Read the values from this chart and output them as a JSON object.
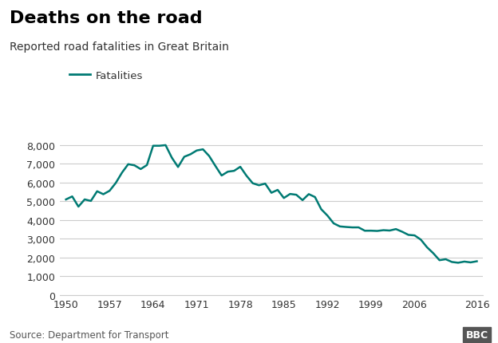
{
  "title": "Deaths on the road",
  "subtitle": "Reported road fatalities in Great Britain",
  "legend_label": "Fatalities",
  "source": "Source: Department for Transport",
  "line_color": "#007a73",
  "bg_color": "#ffffff",
  "grid_color": "#cccccc",
  "years": [
    1950,
    1951,
    1952,
    1953,
    1954,
    1955,
    1956,
    1957,
    1958,
    1959,
    1960,
    1961,
    1962,
    1963,
    1964,
    1965,
    1966,
    1967,
    1968,
    1969,
    1970,
    1971,
    1972,
    1973,
    1974,
    1975,
    1976,
    1977,
    1978,
    1979,
    1980,
    1981,
    1982,
    1983,
    1984,
    1985,
    1986,
    1987,
    1988,
    1989,
    1990,
    1991,
    1992,
    1993,
    1994,
    1995,
    1996,
    1997,
    1998,
    1999,
    2000,
    2001,
    2002,
    2003,
    2004,
    2005,
    2006,
    2007,
    2008,
    2009,
    2010,
    2011,
    2012,
    2013,
    2014,
    2015,
    2016
  ],
  "fatalities": [
    5090,
    5250,
    4706,
    5090,
    5010,
    5526,
    5367,
    5550,
    5970,
    6520,
    6970,
    6908,
    6709,
    6922,
    7952,
    7952,
    7985,
    7319,
    6819,
    7365,
    7499,
    7699,
    7763,
    7406,
    6876,
    6366,
    6570,
    6614,
    6831,
    6352,
    5953,
    5846,
    5934,
    5445,
    5599,
    5165,
    5382,
    5339,
    5052,
    5373,
    5217,
    4568,
    4229,
    3814,
    3650,
    3621,
    3598,
    3599,
    3421,
    3423,
    3409,
    3450,
    3431,
    3508,
    3368,
    3201,
    3172,
    2946,
    2538,
    2222,
    1850,
    1901,
    1754,
    1713,
    1775,
    1732,
    1792
  ],
  "xtick_labels": [
    "1950",
    "1957",
    "1964",
    "1971",
    "1978",
    "1985",
    "1992",
    "1999",
    "2006",
    "2016"
  ],
  "xtick_positions": [
    1950,
    1957,
    1964,
    1971,
    1978,
    1985,
    1992,
    1999,
    2006,
    2016
  ],
  "ytick_labels": [
    "0",
    "1,000",
    "2,000",
    "3,000",
    "4,000",
    "5,000",
    "6,000",
    "7,000",
    "8,000"
  ],
  "ytick_values": [
    0,
    1000,
    2000,
    3000,
    4000,
    5000,
    6000,
    7000,
    8000
  ],
  "ylim": [
    0,
    8800
  ],
  "xlim": [
    1949,
    2017
  ],
  "title_fontsize": 16,
  "subtitle_fontsize": 10,
  "tick_fontsize": 9,
  "source_fontsize": 8.5,
  "legend_fontsize": 9.5
}
